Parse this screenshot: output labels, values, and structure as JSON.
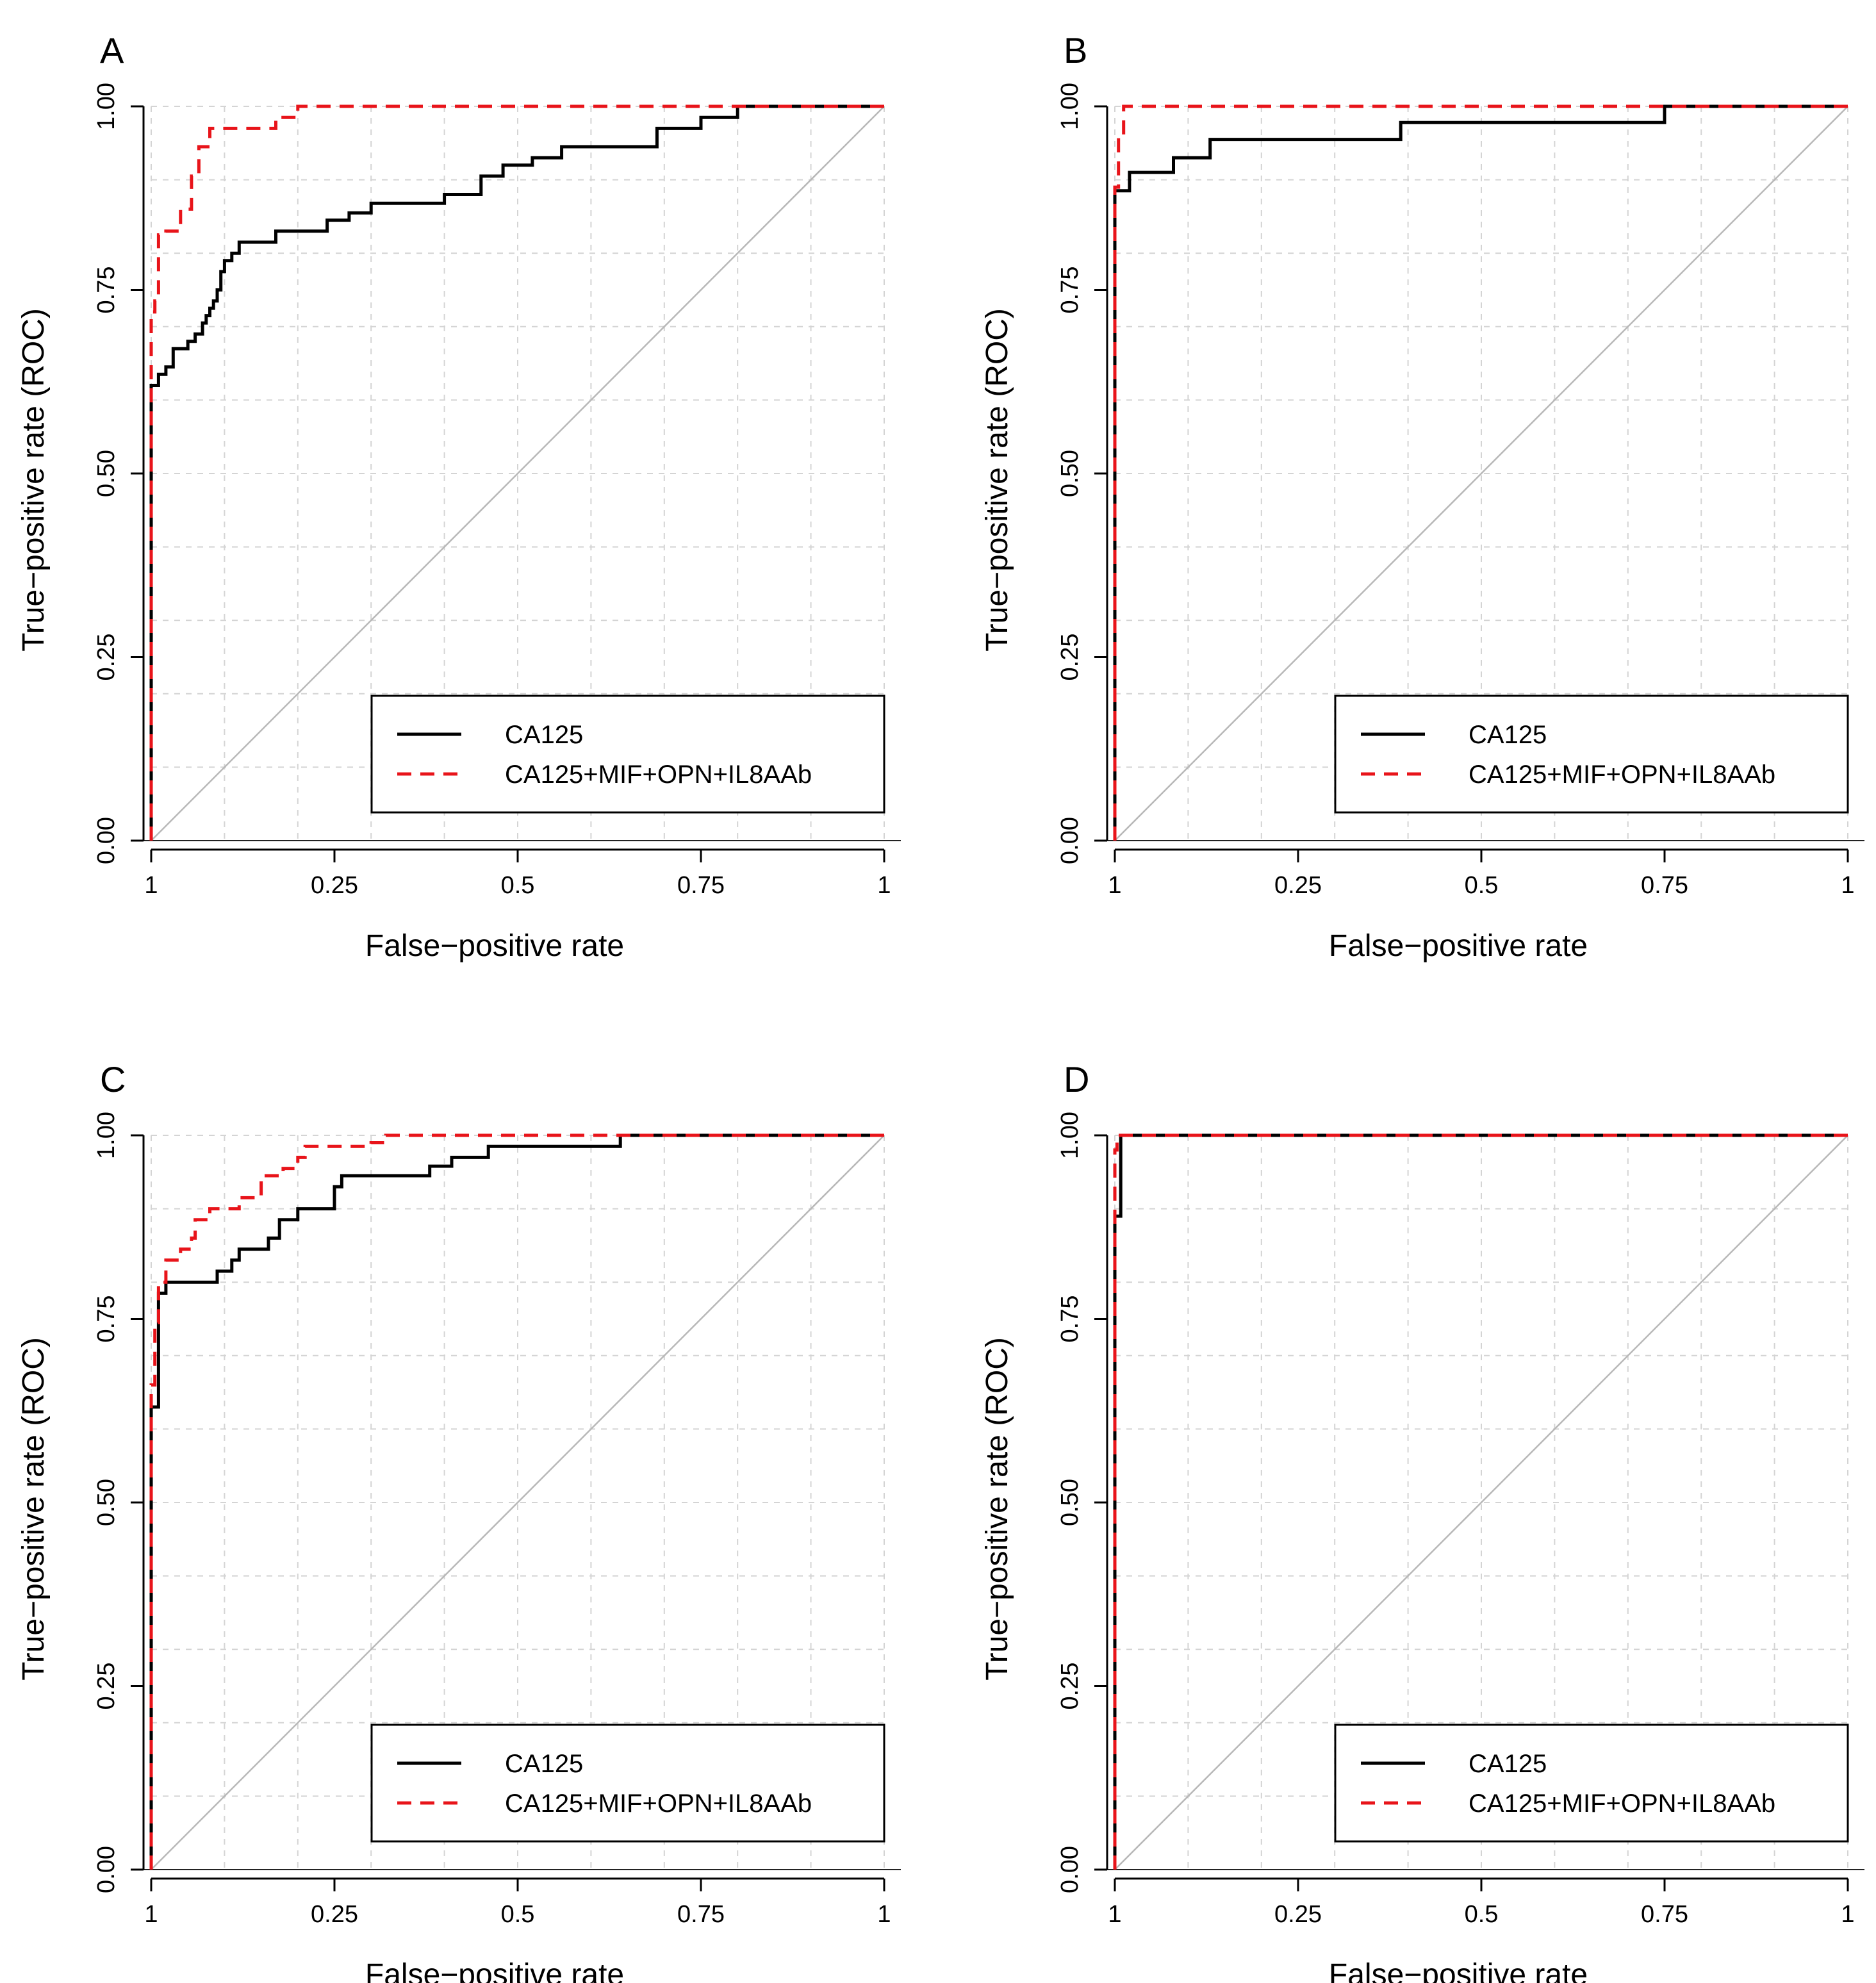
{
  "legend": {
    "series1": "CA125",
    "series2": "CA125+MIF+OPN+IL8AAb"
  },
  "colors": {
    "series1": "#000000",
    "series2": "#e8141a",
    "grid": "#d4d4d4",
    "diagonal": "#b8b8b8",
    "axis": "#000000"
  },
  "chart_data": [
    {
      "type": "line",
      "panel": "A",
      "title": "",
      "xlabel": "False−positive rate",
      "ylabel": "True−positive rate (ROC)",
      "xlim": [
        0,
        1
      ],
      "ylim": [
        0,
        1
      ],
      "x_tick_labels": [
        "1",
        "0.25",
        "0.5",
        "0.75",
        "1"
      ],
      "y_tick_labels": [
        "0.00",
        "0.25",
        "0.50",
        "0.75",
        "1.00"
      ],
      "grid": true,
      "legend_position": "bottom-right",
      "series": [
        {
          "name": "CA125",
          "style": "solid",
          "x": [
            0,
            0,
            0.01,
            0.01,
            0.02,
            0.02,
            0.03,
            0.03,
            0.05,
            0.05,
            0.06,
            0.06,
            0.07,
            0.07,
            0.075,
            0.075,
            0.08,
            0.08,
            0.085,
            0.085,
            0.09,
            0.09,
            0.095,
            0.095,
            0.1,
            0.1,
            0.11,
            0.11,
            0.12,
            0.12,
            0.17,
            0.17,
            0.24,
            0.24,
            0.27,
            0.27,
            0.3,
            0.3,
            0.4,
            0.4,
            0.45,
            0.45,
            0.48,
            0.48,
            0.52,
            0.52,
            0.56,
            0.56,
            0.69,
            0.69,
            0.75,
            0.75,
            0.8,
            0.8,
            0.87,
            0.87,
            1
          ],
          "y": [
            0,
            0.62,
            0.62,
            0.635,
            0.635,
            0.645,
            0.645,
            0.67,
            0.67,
            0.68,
            0.68,
            0.69,
            0.69,
            0.705,
            0.705,
            0.715,
            0.715,
            0.725,
            0.725,
            0.735,
            0.735,
            0.75,
            0.75,
            0.775,
            0.775,
            0.79,
            0.79,
            0.8,
            0.8,
            0.815,
            0.815,
            0.83,
            0.83,
            0.845,
            0.845,
            0.855,
            0.855,
            0.868,
            0.868,
            0.88,
            0.88,
            0.905,
            0.905,
            0.92,
            0.92,
            0.93,
            0.93,
            0.945,
            0.945,
            0.97,
            0.97,
            0.985,
            0.985,
            1,
            1,
            1,
            1
          ]
        },
        {
          "name": "CA125+MIF+OPN+IL8AAb",
          "style": "dashed",
          "x": [
            0,
            0,
            0.005,
            0.005,
            0.01,
            0.01,
            0.02,
            0.02,
            0.04,
            0.04,
            0.055,
            0.055,
            0.065,
            0.065,
            0.08,
            0.08,
            0.17,
            0.17,
            0.2,
            0.2,
            1
          ],
          "y": [
            0,
            0.72,
            0.72,
            0.735,
            0.735,
            0.825,
            0.825,
            0.83,
            0.83,
            0.86,
            0.86,
            0.905,
            0.905,
            0.945,
            0.945,
            0.97,
            0.97,
            0.985,
            0.985,
            1,
            1
          ]
        }
      ]
    },
    {
      "type": "line",
      "panel": "B",
      "title": "",
      "xlabel": "False−positive rate",
      "ylabel": "True−positive rate (ROC)",
      "xlim": [
        0,
        1
      ],
      "ylim": [
        0,
        1
      ],
      "x_tick_labels": [
        "1",
        "0.25",
        "0.5",
        "0.75",
        "1"
      ],
      "y_tick_labels": [
        "0.00",
        "0.25",
        "0.50",
        "0.75",
        "1.00"
      ],
      "grid": true,
      "legend_position": "bottom-right",
      "series": [
        {
          "name": "CA125",
          "style": "solid",
          "x": [
            0,
            0,
            0.02,
            0.02,
            0.08,
            0.08,
            0.13,
            0.13,
            0.39,
            0.39,
            0.75,
            0.75,
            1
          ],
          "y": [
            0,
            0.885,
            0.885,
            0.91,
            0.91,
            0.93,
            0.93,
            0.955,
            0.955,
            0.978,
            0.978,
            1,
            1
          ]
        },
        {
          "name": "CA125+MIF+OPN+IL8AAb",
          "style": "dashed",
          "x": [
            0,
            0,
            0.005,
            0.005,
            0.012,
            0.012,
            1
          ],
          "y": [
            0,
            0.89,
            0.89,
            0.96,
            0.96,
            1,
            1
          ]
        }
      ]
    },
    {
      "type": "line",
      "panel": "C",
      "title": "",
      "xlabel": "False−positive rate",
      "ylabel": "True−positive rate (ROC)",
      "xlim": [
        0,
        1
      ],
      "ylim": [
        0,
        1
      ],
      "x_tick_labels": [
        "1",
        "0.25",
        "0.5",
        "0.75",
        "1"
      ],
      "y_tick_labels": [
        "0.00",
        "0.25",
        "0.50",
        "0.75",
        "1.00"
      ],
      "grid": true,
      "legend_position": "bottom-right",
      "series": [
        {
          "name": "CA125",
          "style": "solid",
          "x": [
            0,
            0,
            0.01,
            0.01,
            0.02,
            0.02,
            0.09,
            0.09,
            0.11,
            0.11,
            0.12,
            0.12,
            0.16,
            0.16,
            0.175,
            0.175,
            0.2,
            0.2,
            0.25,
            0.25,
            0.26,
            0.26,
            0.38,
            0.38,
            0.41,
            0.41,
            0.46,
            0.46,
            0.64,
            0.64,
            1
          ],
          "y": [
            0,
            0.63,
            0.63,
            0.785,
            0.785,
            0.8,
            0.8,
            0.815,
            0.815,
            0.83,
            0.83,
            0.845,
            0.845,
            0.86,
            0.86,
            0.885,
            0.885,
            0.9,
            0.9,
            0.93,
            0.93,
            0.945,
            0.945,
            0.958,
            0.958,
            0.97,
            0.97,
            0.985,
            0.985,
            1,
            1
          ]
        },
        {
          "name": "CA125+MIF+OPN+IL8AAb",
          "style": "dashed",
          "x": [
            0,
            0,
            0.005,
            0.005,
            0.01,
            0.01,
            0.02,
            0.02,
            0.04,
            0.04,
            0.055,
            0.055,
            0.06,
            0.06,
            0.08,
            0.08,
            0.12,
            0.12,
            0.15,
            0.15,
            0.18,
            0.18,
            0.2,
            0.2,
            0.21,
            0.21,
            0.3,
            0.3,
            0.32,
            0.32,
            1
          ],
          "y": [
            0,
            0.66,
            0.66,
            0.745,
            0.745,
            0.8,
            0.8,
            0.83,
            0.83,
            0.845,
            0.845,
            0.86,
            0.86,
            0.885,
            0.885,
            0.9,
            0.9,
            0.915,
            0.915,
            0.945,
            0.945,
            0.955,
            0.955,
            0.97,
            0.97,
            0.985,
            0.985,
            0.99,
            0.99,
            1,
            1
          ]
        }
      ]
    },
    {
      "type": "line",
      "panel": "D",
      "title": "",
      "xlabel": "False−positive rate",
      "ylabel": "True−positive rate (ROC)",
      "xlim": [
        0,
        1
      ],
      "ylim": [
        0,
        1
      ],
      "x_tick_labels": [
        "1",
        "0.25",
        "0.5",
        "0.75",
        "1"
      ],
      "y_tick_labels": [
        "0.00",
        "0.25",
        "0.50",
        "0.75",
        "1.00"
      ],
      "grid": true,
      "legend_position": "bottom-right",
      "series": [
        {
          "name": "CA125",
          "style": "solid",
          "x": [
            0,
            0,
            0.008,
            0.008,
            1
          ],
          "y": [
            0,
            0.89,
            0.89,
            1,
            1
          ]
        },
        {
          "name": "CA125+MIF+OPN+IL8AAb",
          "style": "dashed",
          "x": [
            0,
            0,
            0.003,
            0.003,
            1
          ],
          "y": [
            0,
            0.98,
            0.98,
            1,
            1
          ]
        }
      ]
    }
  ]
}
